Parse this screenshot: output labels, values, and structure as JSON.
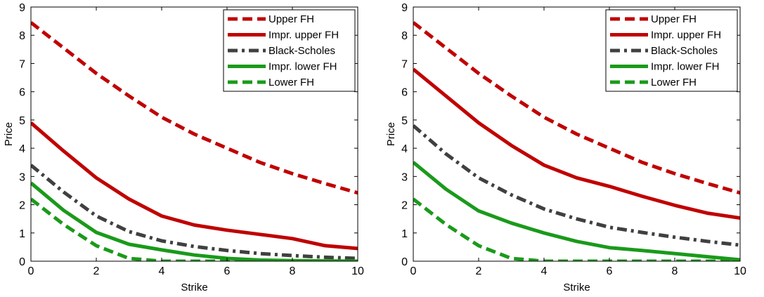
{
  "chart_data": [
    {
      "type": "line",
      "xlabel": "Strike",
      "ylabel": "Price",
      "xlim": [
        0,
        10
      ],
      "ylim": [
        0,
        9
      ],
      "xticks": [
        "0",
        "2",
        "4",
        "6",
        "8",
        "10"
      ],
      "yticks": [
        "0",
        "1",
        "2",
        "3",
        "4",
        "5",
        "6",
        "7",
        "8",
        "9"
      ],
      "legend_position": "top-right",
      "x": [
        0,
        1,
        2,
        3,
        4,
        5,
        6,
        7,
        8,
        9,
        10
      ],
      "series": [
        {
          "name": "Upper FH",
          "color": "#c00000",
          "dash": "dashed",
          "values": [
            8.45,
            7.55,
            6.65,
            5.85,
            5.1,
            4.5,
            4.0,
            3.5,
            3.1,
            2.75,
            2.42
          ]
        },
        {
          "name": "Impr. upper FH",
          "color": "#c00000",
          "dash": "solid",
          "values": [
            4.9,
            3.9,
            2.95,
            2.2,
            1.6,
            1.28,
            1.1,
            0.95,
            0.8,
            0.55,
            0.45
          ]
        },
        {
          "name": "Black-Scholes",
          "color": "#404040",
          "dash": "dashdot",
          "values": [
            3.4,
            2.45,
            1.6,
            1.05,
            0.72,
            0.52,
            0.38,
            0.27,
            0.2,
            0.14,
            0.1
          ]
        },
        {
          "name": "Impr. lower FH",
          "color": "#1a9a1a",
          "dash": "solid",
          "values": [
            2.77,
            1.8,
            1.02,
            0.6,
            0.4,
            0.22,
            0.1,
            0.04,
            0.02,
            0.01,
            0.0
          ]
        },
        {
          "name": "Lower FH",
          "color": "#1a9a1a",
          "dash": "dashed",
          "values": [
            2.2,
            1.3,
            0.55,
            0.1,
            0.0,
            0.0,
            0.0,
            0.0,
            0.0,
            0.0,
            0.0
          ]
        }
      ]
    },
    {
      "type": "line",
      "xlabel": "Strike",
      "ylabel": "Price",
      "xlim": [
        0,
        10
      ],
      "ylim": [
        0,
        9
      ],
      "xticks": [
        "0",
        "2",
        "4",
        "6",
        "8",
        "10"
      ],
      "yticks": [
        "0",
        "1",
        "2",
        "3",
        "4",
        "5",
        "6",
        "7",
        "8",
        "9"
      ],
      "legend_position": "top-right",
      "x": [
        0,
        1,
        2,
        3,
        4,
        5,
        6,
        7,
        8,
        9,
        10
      ],
      "series": [
        {
          "name": "Upper FH",
          "color": "#c00000",
          "dash": "dashed",
          "values": [
            8.45,
            7.55,
            6.65,
            5.85,
            5.1,
            4.5,
            4.0,
            3.5,
            3.1,
            2.75,
            2.42
          ]
        },
        {
          "name": "Impr. upper FH",
          "color": "#c00000",
          "dash": "solid",
          "values": [
            6.8,
            5.85,
            4.9,
            4.1,
            3.4,
            2.95,
            2.65,
            2.3,
            1.98,
            1.7,
            1.53
          ]
        },
        {
          "name": "Black-Scholes",
          "color": "#404040",
          "dash": "dashdot",
          "values": [
            4.8,
            3.8,
            2.95,
            2.35,
            1.85,
            1.5,
            1.2,
            1.02,
            0.85,
            0.7,
            0.57
          ]
        },
        {
          "name": "Impr. lower FH",
          "color": "#1a9a1a",
          "dash": "solid",
          "values": [
            3.5,
            2.55,
            1.78,
            1.35,
            1.0,
            0.7,
            0.48,
            0.38,
            0.27,
            0.16,
            0.05
          ]
        },
        {
          "name": "Lower FH",
          "color": "#1a9a1a",
          "dash": "dashed",
          "values": [
            2.2,
            1.3,
            0.55,
            0.1,
            0.0,
            0.0,
            0.0,
            0.0,
            0.0,
            0.0,
            0.0
          ]
        }
      ]
    }
  ]
}
